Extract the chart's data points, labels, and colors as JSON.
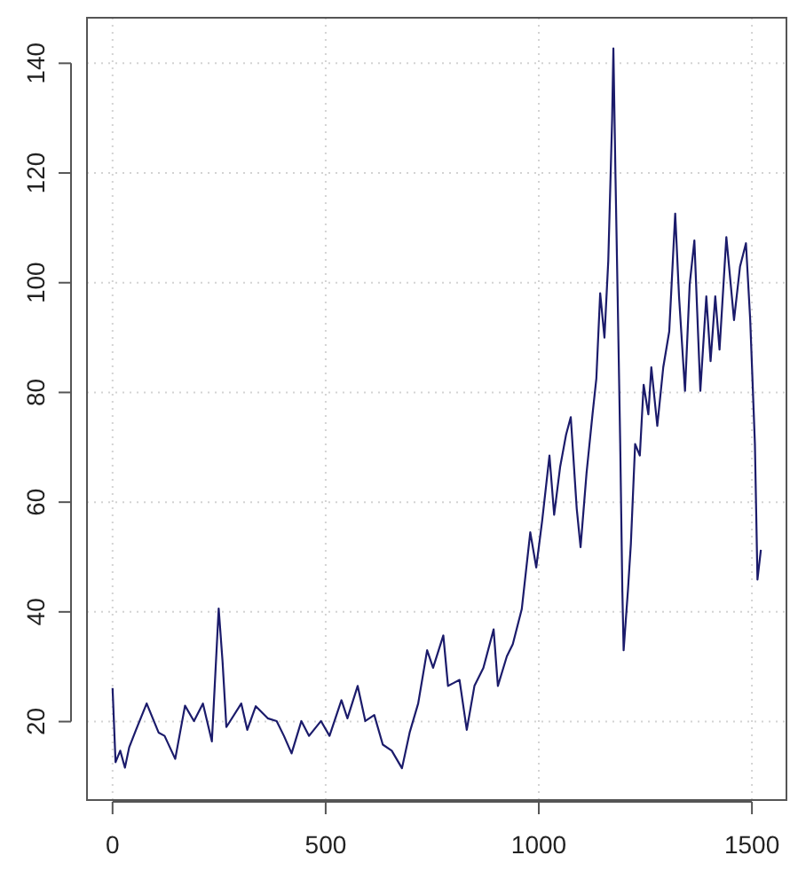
{
  "chart_data": {
    "type": "line",
    "xlim": [
      -60,
      1581
    ],
    "ylim": [
      5.7,
      148.3
    ],
    "xticks": [
      0,
      500,
      1000,
      1500
    ],
    "yticks": [
      20,
      40,
      60,
      80,
      100,
      120,
      140
    ],
    "grid": true,
    "line_style": "solid",
    "series": [
      {
        "color": "#1b1b6b",
        "x": [
          0,
          7,
          18,
          29,
          39,
          55,
          80,
          108,
          122,
          147,
          170,
          191,
          212,
          233,
          249,
          258,
          267,
          302,
          316,
          336,
          364,
          385,
          402,
          420,
          443,
          461,
          489,
          509,
          537,
          551,
          575,
          593,
          614,
          634,
          655,
          679,
          697,
          717,
          738,
          752,
          776,
          787,
          814,
          831,
          849,
          870,
          894,
          904,
          925,
          939,
          960,
          980,
          994,
          1008,
          1025,
          1036,
          1050,
          1064,
          1075,
          1089,
          1098,
          1112,
          1126,
          1135,
          1144,
          1154,
          1163,
          1172,
          1175,
          1180,
          1185,
          1191,
          1196,
          1199,
          1209,
          1216,
          1226,
          1237,
          1246,
          1257,
          1264,
          1278,
          1292,
          1306,
          1320,
          1329,
          1343,
          1354,
          1365,
          1379,
          1393,
          1403,
          1414,
          1424,
          1440,
          1458,
          1472,
          1486,
          1496,
          1507,
          1513,
          1521
        ],
        "values": [
          26.1,
          12.6,
          14.7,
          11.6,
          15.3,
          18.5,
          23.3,
          18,
          17.4,
          13.2,
          22.9,
          20.1,
          23.3,
          16.4,
          40.6,
          31,
          19,
          23.3,
          18.5,
          22.8,
          20.6,
          20.1,
          17.4,
          14.2,
          20.1,
          17.4,
          20.1,
          17.4,
          23.9,
          20.6,
          26.5,
          20.1,
          21.2,
          15.8,
          14.7,
          11.5,
          18,
          23.3,
          33,
          29.8,
          35.7,
          26.5,
          27.6,
          18.5,
          26.5,
          29.8,
          36.8,
          26.5,
          31.9,
          34.1,
          40.5,
          54.5,
          48.1,
          56.7,
          68.5,
          57.7,
          66.4,
          72.3,
          75.5,
          58.8,
          51.8,
          65.3,
          76,
          82.5,
          98.1,
          90,
          104,
          129.8,
          142.7,
          119,
          97.5,
          70.6,
          43.8,
          33,
          43.8,
          52.4,
          70.6,
          68.5,
          81.4,
          76,
          84.6,
          73.9,
          84.6,
          91.1,
          112.6,
          97.5,
          80.3,
          99.7,
          107.7,
          80.3,
          97.5,
          85.7,
          97.5,
          87.8,
          108.3,
          93.2,
          102.9,
          107.2,
          93.2,
          70.6,
          45.9,
          51.3
        ]
      }
    ]
  }
}
